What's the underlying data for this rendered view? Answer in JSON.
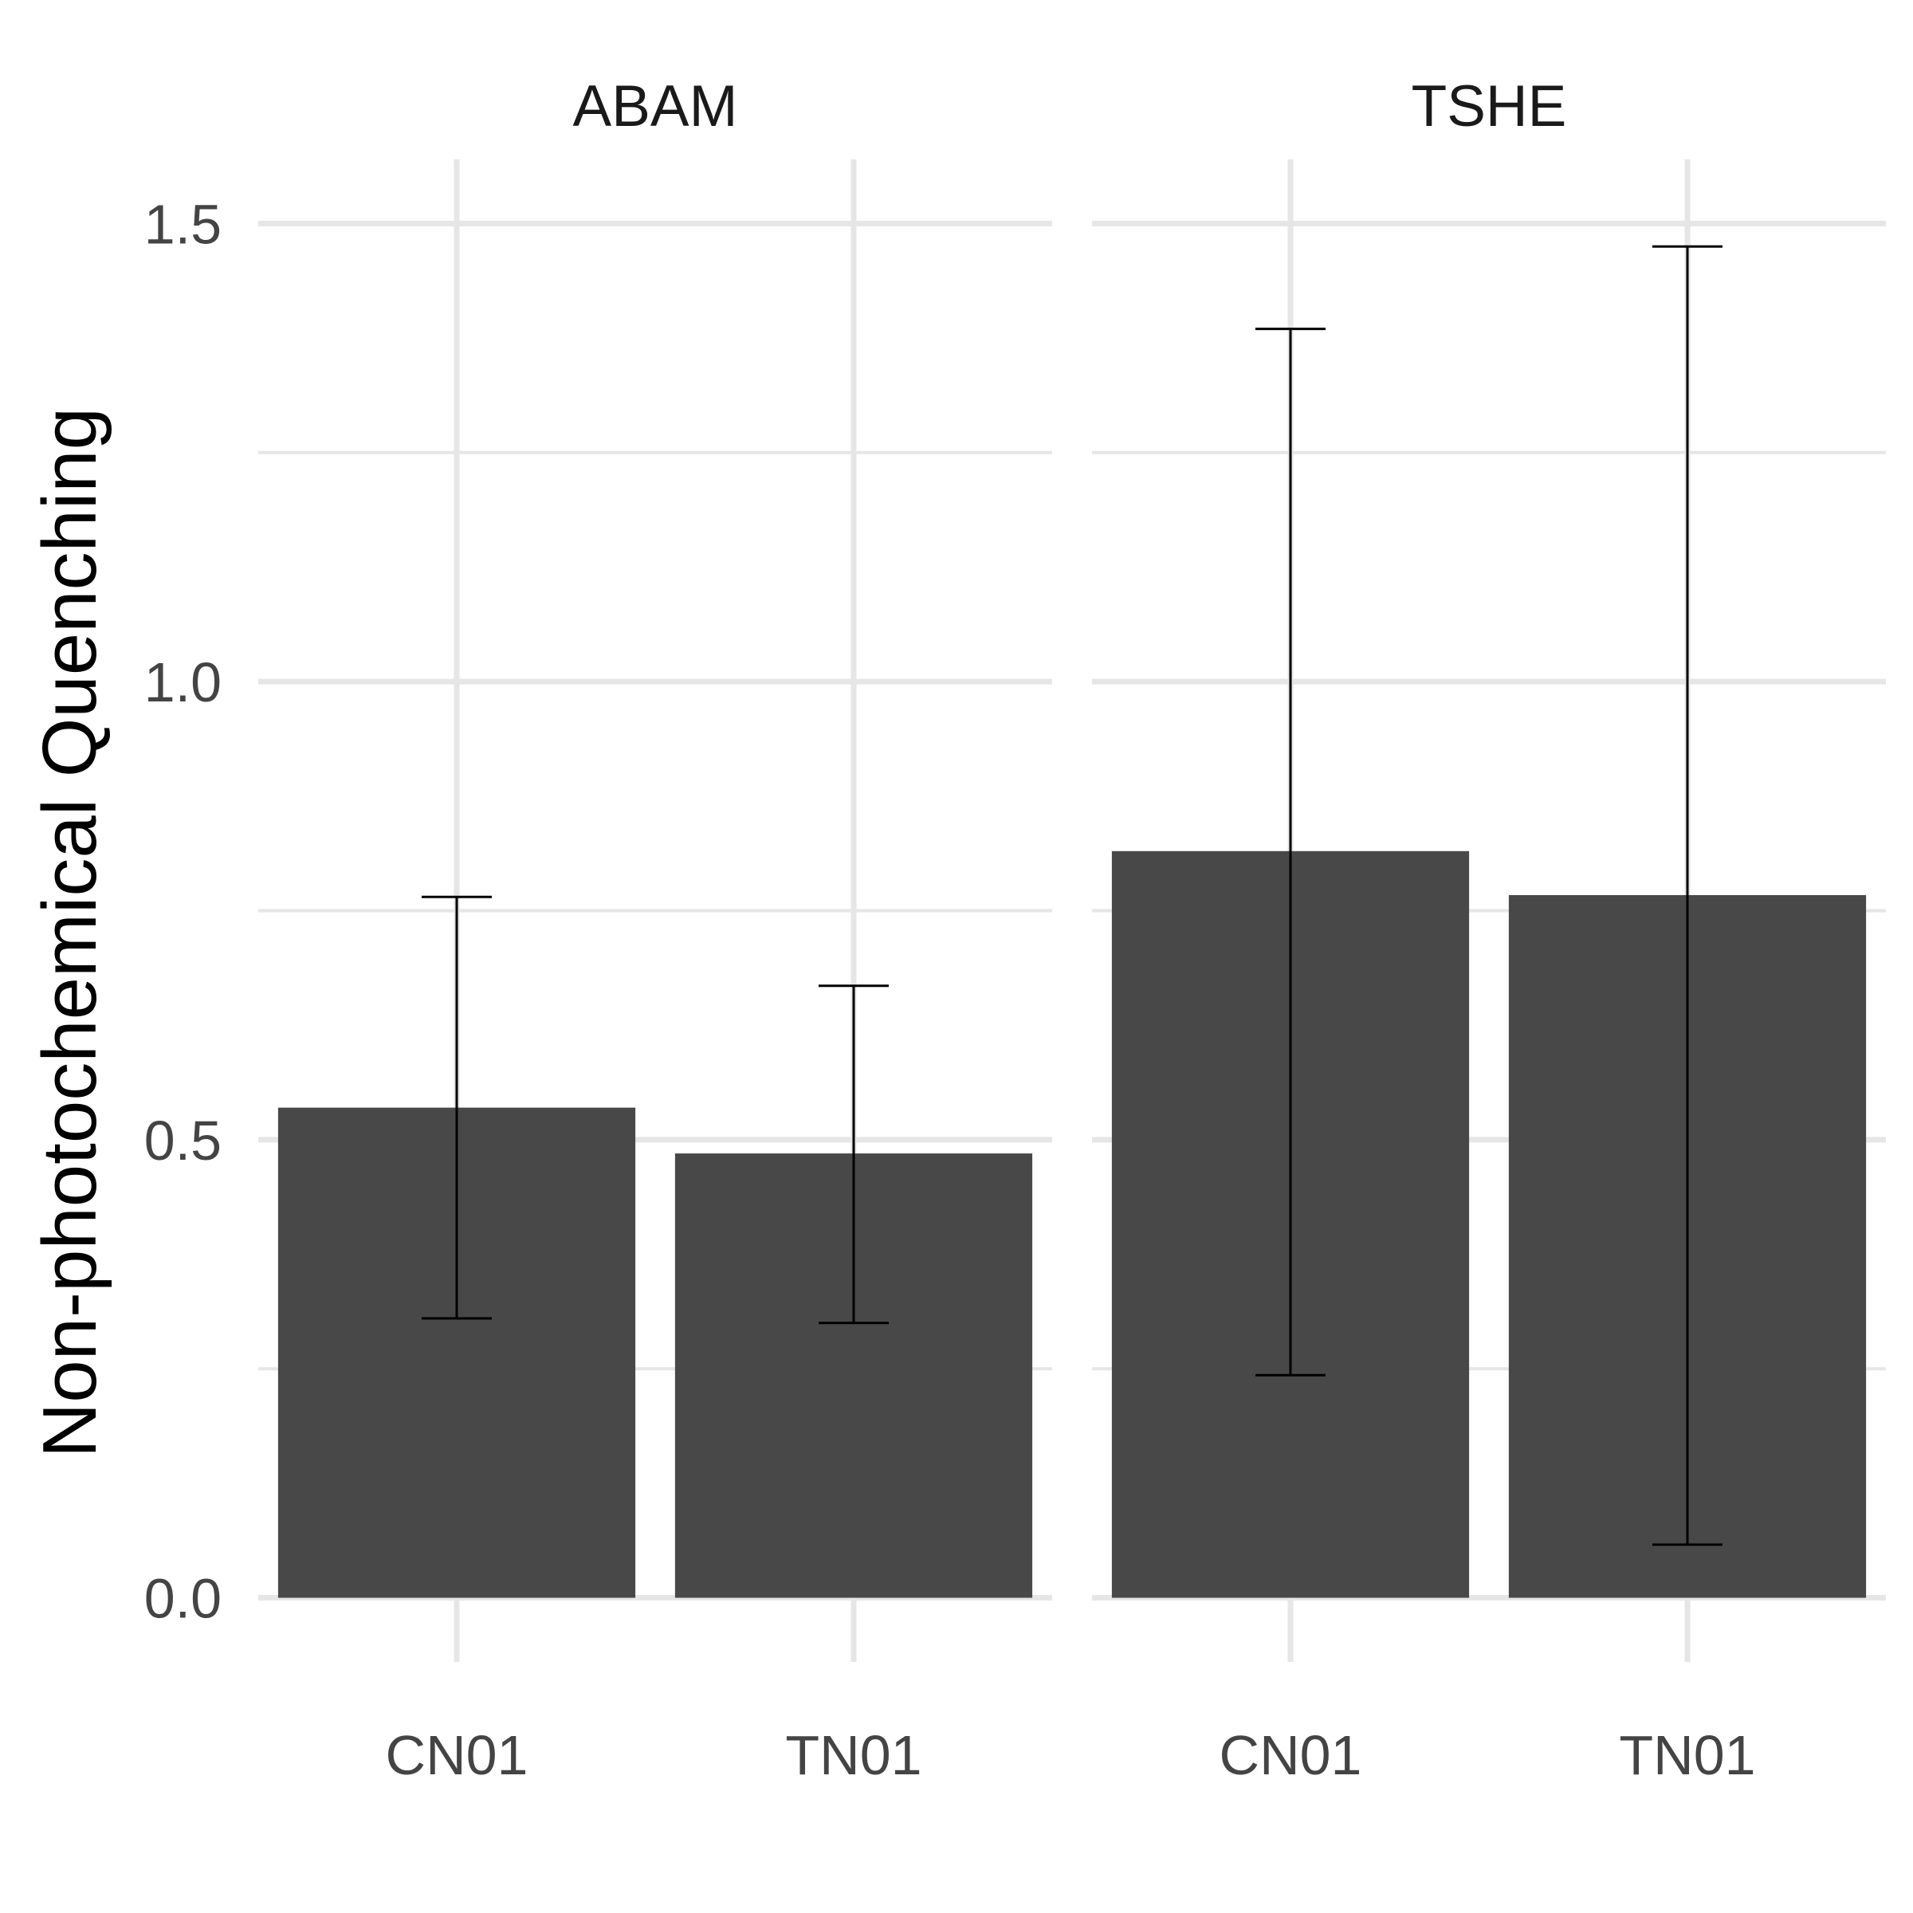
{
  "chart_data": {
    "type": "bar",
    "ylabel": "Non-photochemical Quenching",
    "xlabel": "",
    "ylim": [
      -0.07,
      1.57
    ],
    "yticks": [
      0.0,
      0.5,
      1.0,
      1.5
    ],
    "ytick_labels": [
      "0.0",
      "0.5",
      "1.0",
      "1.5"
    ],
    "yminor": [
      0.25,
      0.75,
      1.25
    ],
    "categories": [
      "CN01",
      "TN01"
    ],
    "panels": [
      {
        "label": "ABAM",
        "bars": [
          {
            "category": "CN01",
            "value": 0.535,
            "err_low": 0.305,
            "err_high": 0.765
          },
          {
            "category": "TN01",
            "value": 0.485,
            "err_low": 0.3,
            "err_high": 0.668
          }
        ]
      },
      {
        "label": "TSHE",
        "bars": [
          {
            "category": "CN01",
            "value": 0.815,
            "err_low": 0.243,
            "err_high": 1.385
          },
          {
            "category": "TN01",
            "value": 0.767,
            "err_low": 0.058,
            "err_high": 1.475
          }
        ]
      }
    ],
    "colors": {
      "bar": "#484848",
      "grid": "#e6e6e6",
      "error": "#000000"
    }
  }
}
